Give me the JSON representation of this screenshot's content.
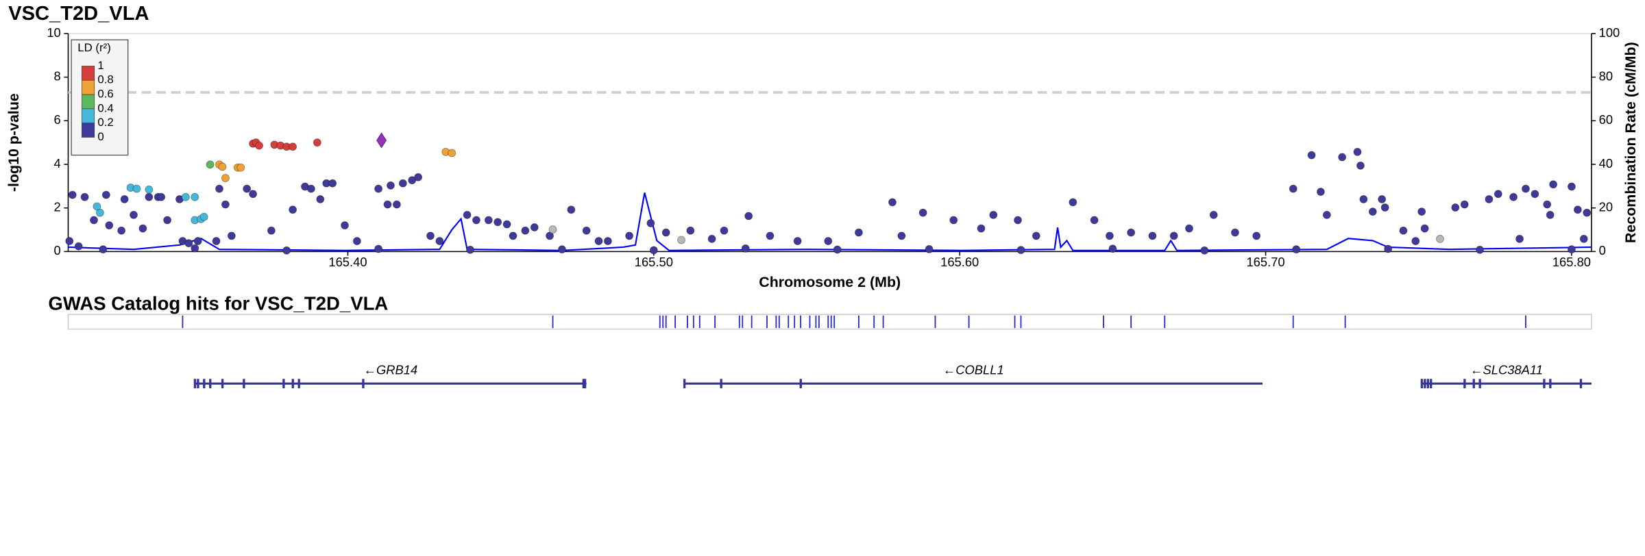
{
  "chart_data": {
    "type": "scatter",
    "title": "VSC_T2D_VLA",
    "x_label": "Chromosome 2 (Mb)",
    "y_label": "-log10 p-value",
    "y2_label": "Recombination Rate (cM/Mb)",
    "xlim": [
      165.3086,
      165.8065
    ],
    "xticks": [
      {
        "value": 165.4,
        "label": "165.40"
      },
      {
        "value": 165.5,
        "label": "165.50"
      },
      {
        "value": 165.6,
        "label": "165.60"
      },
      {
        "value": 165.7,
        "label": "165.70"
      },
      {
        "value": 165.8,
        "label": "165.80"
      }
    ],
    "ylim": [
      0,
      10
    ],
    "yticks": [
      0,
      2,
      4,
      6,
      8,
      10
    ],
    "y2lim": [
      0,
      100
    ],
    "y2ticks": [
      0,
      20,
      40,
      60,
      80,
      100
    ],
    "significance_line": 7.3,
    "legend_position": "top-left",
    "legend": {
      "title": "LD (r²)",
      "ticks": [
        1,
        0.8,
        0.6,
        0.4,
        0.2,
        0
      ],
      "colors": [
        "#d43f3a",
        "#eea236",
        "#5cb85c",
        "#46b8da",
        "#3f3a99"
      ]
    },
    "series": [
      {
        "mark": "line",
        "axis": "y2",
        "color": "#0000ff",
        "x": [
          165.3086,
          165.33,
          165.345,
          165.352,
          165.358,
          165.4,
          165.43,
          165.434,
          165.437,
          165.439,
          165.47,
          165.49,
          165.494,
          165.497,
          165.501,
          165.505,
          165.55,
          165.6,
          165.631,
          165.632,
          165.633,
          165.635,
          165.637,
          165.667,
          165.669,
          165.671,
          165.72,
          165.727,
          165.735,
          165.74,
          165.76,
          165.8065
        ],
        "values": [
          2,
          1,
          3,
          6,
          1,
          0.5,
          1,
          10,
          15,
          1,
          0.5,
          2,
          3,
          27,
          5,
          0.5,
          1,
          0.5,
          1,
          11,
          2,
          5,
          0.5,
          0.5,
          5,
          0.5,
          1,
          6,
          5,
          2,
          1,
          2
        ]
      },
      {
        "mark": "circle",
        "color": "#3f3a99",
        "x": [
          165.31,
          165.314,
          165.321,
          165.309,
          165.312,
          165.317,
          165.322,
          165.326,
          165.327,
          165.33,
          165.333,
          165.335,
          165.338,
          165.339,
          165.341,
          165.345,
          165.346,
          165.348,
          165.351,
          165.357,
          165.358,
          165.36,
          165.362,
          165.367,
          165.369,
          165.375,
          165.382,
          165.386,
          165.388,
          165.391,
          165.393,
          165.395,
          165.399,
          165.403,
          165.41,
          165.413,
          165.414,
          165.416,
          165.418,
          165.421,
          165.423,
          165.427,
          165.43,
          165.439,
          165.442,
          165.446,
          165.449,
          165.452,
          165.454,
          165.458,
          165.461,
          165.466,
          165.473,
          165.478,
          165.482,
          165.485,
          165.492,
          165.499,
          165.504,
          165.512,
          165.519,
          165.523,
          165.531,
          165.538,
          165.547,
          165.557,
          165.567,
          165.578,
          165.581,
          165.588,
          165.598,
          165.607,
          165.611,
          165.619,
          165.625,
          165.637,
          165.644,
          165.649,
          165.656,
          165.663,
          165.67,
          165.675,
          165.683,
          165.69,
          165.697,
          165.709,
          165.715,
          165.718,
          165.72,
          165.725,
          165.73,
          165.731,
          165.732,
          165.735,
          165.738,
          165.739,
          165.745,
          165.749,
          165.751,
          165.752,
          165.762,
          165.765,
          165.773,
          165.776,
          165.781,
          165.783,
          165.785,
          165.788,
          165.792,
          165.793,
          165.794,
          165.8,
          165.802,
          165.805,
          165.804,
          165.32,
          165.35,
          165.38,
          165.41,
          165.44,
          165.47,
          165.5,
          165.53,
          165.56,
          165.59,
          165.62,
          165.65,
          165.68,
          165.71,
          165.74,
          165.77,
          165.8
        ],
        "values": [
          2.6,
          2.5,
          2.6,
          0.48,
          0.24,
          1.44,
          1.2,
          0.96,
          2.4,
          1.68,
          1.06,
          2.5,
          2.5,
          2.5,
          1.44,
          2.4,
          0.48,
          0.38,
          0.48,
          0.48,
          2.88,
          2.16,
          0.72,
          2.88,
          2.64,
          0.96,
          1.92,
          2.98,
          2.88,
          2.4,
          3.13,
          3.13,
          1.2,
          0.48,
          2.88,
          2.16,
          3.03,
          2.16,
          3.13,
          3.27,
          3.41,
          0.72,
          0.48,
          1.68,
          1.44,
          1.44,
          1.35,
          1.25,
          0.72,
          0.96,
          1.11,
          0.72,
          1.92,
          0.96,
          0.48,
          0.48,
          0.72,
          1.3,
          0.87,
          0.96,
          0.58,
          0.96,
          1.63,
          0.72,
          0.48,
          0.48,
          0.87,
          2.26,
          0.72,
          1.78,
          1.44,
          1.06,
          1.68,
          1.44,
          0.72,
          2.26,
          1.44,
          0.72,
          0.87,
          0.72,
          0.72,
          1.06,
          1.68,
          0.87,
          0.72,
          2.88,
          4.42,
          2.74,
          1.68,
          4.33,
          4.57,
          3.94,
          2.4,
          1.83,
          2.4,
          2.02,
          0.96,
          0.48,
          1.83,
          1.06,
          2.02,
          2.16,
          2.4,
          2.64,
          2.5,
          0.58,
          2.88,
          2.64,
          2.16,
          1.68,
          3.08,
          2.98,
          1.92,
          1.78,
          0.58,
          0.1,
          0.15,
          0.05,
          0.12,
          0.08,
          0.1,
          0.06,
          0.14,
          0.09,
          0.11,
          0.07,
          0.13,
          0.05,
          0.1,
          0.12,
          0.08,
          0.1
        ]
      },
      {
        "mark": "circle",
        "color": "#b8b8b8",
        "x": [
          165.467,
          165.509,
          165.757
        ],
        "values": [
          1.01,
          0.53,
          0.58
        ]
      },
      {
        "mark": "circle",
        "color": "#46b8da",
        "x": [
          165.329,
          165.331,
          165.335,
          165.319,
          165.318,
          165.347,
          165.35,
          165.352,
          165.353,
          165.35
        ],
        "values": [
          2.93,
          2.88,
          2.84,
          1.78,
          2.07,
          2.5,
          1.44,
          1.49,
          1.59,
          2.5
        ]
      },
      {
        "mark": "circle",
        "color": "#5cb85c",
        "x": [
          165.355
        ],
        "values": [
          3.99
        ]
      },
      {
        "mark": "circle",
        "color": "#eea236",
        "x": [
          165.358,
          165.359,
          165.36,
          165.364,
          165.365,
          165.432,
          165.434
        ],
        "values": [
          3.99,
          3.89,
          3.37,
          3.85,
          3.85,
          4.57,
          4.52
        ]
      },
      {
        "mark": "circle",
        "color": "#d43f3a",
        "x": [
          165.369,
          165.37,
          165.371,
          165.376,
          165.378,
          165.38,
          165.382,
          165.39
        ],
        "values": [
          4.95,
          5.0,
          4.86,
          4.9,
          4.86,
          4.81,
          4.81,
          5.0
        ]
      },
      {
        "mark": "diamond",
        "color": "#9632b8",
        "x": [
          165.411
        ],
        "values": [
          5.1
        ]
      }
    ]
  },
  "gwas_track": {
    "title": "GWAS Catalog hits for VSC_T2D_VLA",
    "color": "#2b2bd6",
    "positions": [
      165.346,
      165.467,
      165.502,
      165.503,
      165.504,
      165.507,
      165.511,
      165.513,
      165.515,
      165.52,
      165.528,
      165.529,
      165.532,
      165.537,
      165.54,
      165.541,
      165.544,
      165.546,
      165.548,
      165.551,
      165.553,
      165.554,
      165.557,
      165.558,
      165.559,
      165.567,
      165.572,
      165.575,
      165.592,
      165.603,
      165.618,
      165.62,
      165.647,
      165.656,
      165.667,
      165.709,
      165.726,
      165.785
    ]
  },
  "genes": {
    "color": "#363696",
    "items": [
      {
        "label": "←GRB14",
        "start": 165.35,
        "end": 165.478,
        "exons": [
          165.35,
          165.351,
          165.353,
          165.355,
          165.359,
          165.366,
          165.379,
          165.382,
          165.384,
          165.405,
          165.477,
          165.4775
        ]
      },
      {
        "label": "←COBLL1",
        "start": 165.51,
        "end": 165.699,
        "exons": [
          165.51,
          165.522,
          165.548
        ]
      },
      {
        "label": "←SLC38A11",
        "start": 165.751,
        "end": 165.8065,
        "exons": [
          165.751,
          165.752,
          165.753,
          165.754,
          165.765,
          165.768,
          165.77,
          165.791,
          165.793,
          165.803
        ]
      }
    ]
  }
}
